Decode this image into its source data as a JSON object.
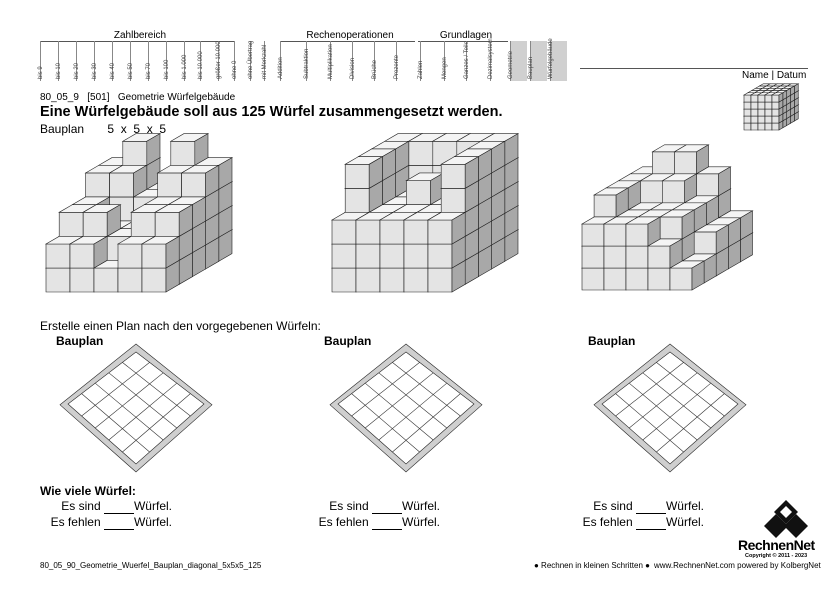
{
  "header": {
    "groups": [
      {
        "name": "Zahlbereich"
      },
      {
        "name": "Rechenoperationen"
      },
      {
        "name": "Grundlagen"
      }
    ],
    "columns": [
      "bis 9",
      "bis 10",
      "bis 20",
      "bis 30",
      "bis 40",
      "bis 50",
      "bis 70",
      "bis 100",
      "bis 1.000",
      "bis 10.000",
      "größer 10.000",
      "ohne 0",
      "ohne Übertrag",
      "mit Merkzahl",
      "Addition",
      "Subtraktion",
      "Multiplikation",
      "Division",
      "Brüche",
      "Prozente",
      "Zahlen",
      "Mengen",
      "Ganzes / Teile",
      "Dezimalsystem",
      "Geometrie",
      "Bauplan",
      "Würfelgebäude"
    ],
    "name_datum": "Name | Datum"
  },
  "meta": {
    "code": "80_05_9",
    "id": "[501]",
    "topic": "Geometrie Würfelgebäude"
  },
  "title": "Eine Würfelgebäude soll aus 125 Würfel zusammengesetzt werden.",
  "bauplan_label": "Bauplan",
  "bauplan_dims": "5  x  5  x  5",
  "instruction": "Erstelle einen Plan nach den vorgegebenen Würfeln:",
  "plans": [
    {
      "label": "Bauplan"
    },
    {
      "label": "Bauplan"
    },
    {
      "label": "Bauplan"
    }
  ],
  "question": "Wie viele Würfel:",
  "answers": [
    {
      "sind": "Es sind",
      "fehlen": "Es fehlen",
      "unit1": "Würfel.",
      "unit2": "Würfel."
    },
    {
      "sind": "Es sind",
      "fehlen": "Es fehlen",
      "unit1": "Würfel.",
      "unit2": "Würfel."
    },
    {
      "sind": "Es sind",
      "fehlen": "Es fehlen",
      "unit1": "Würfel.",
      "unit2": "Würfel."
    }
  ],
  "footer": {
    "filename": "80_05_90_Geometrie_Wuerfel_Bauplan_diagonal_5x5x5_125",
    "slogan": "● Rechnen in kleinen Schritten ●",
    "site": "www.RechnenNet.com powered by KolbergNet",
    "brand": "RechnenNet",
    "copyright": "Copyright © 2011 - 2023"
  }
}
